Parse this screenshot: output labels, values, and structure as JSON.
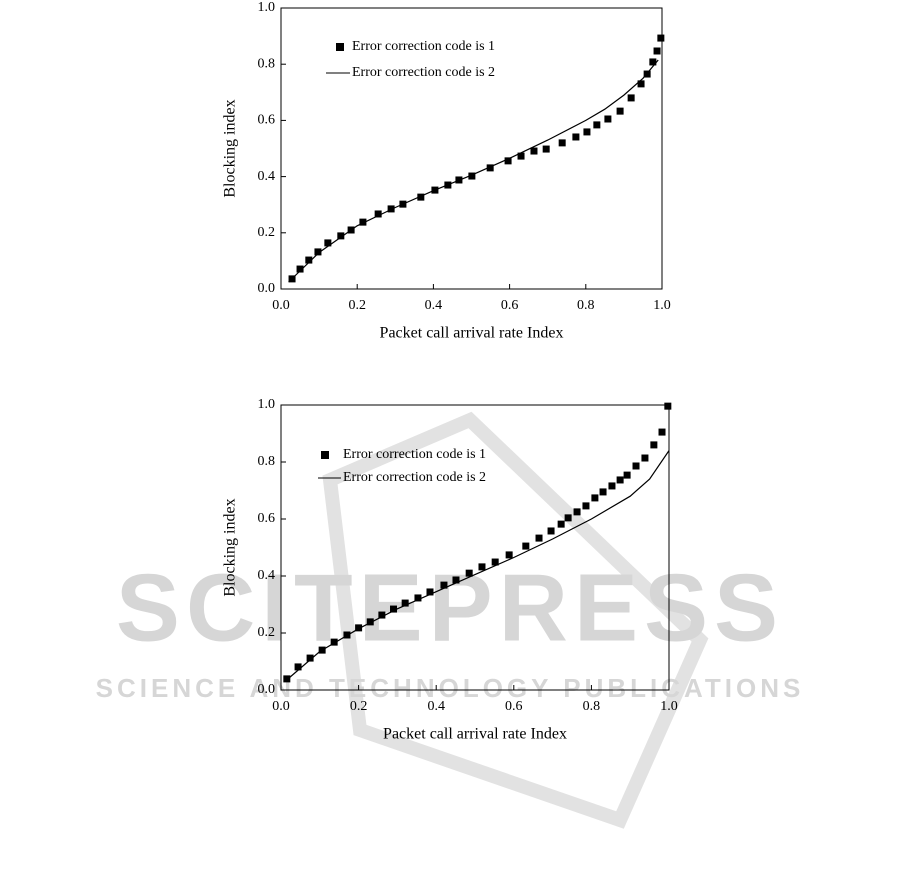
{
  "watermark": {
    "title": "SCITEPRESS",
    "subtitle": "SCIENCE AND TECHNOLOGY PUBLICATIONS"
  },
  "chart_data": [
    {
      "type": "scatter",
      "xlabel": "Packet call arrival rate Index",
      "ylabel": "Blocking index",
      "xlim": [
        0,
        1
      ],
      "ylim": [
        0,
        1
      ],
      "xticks": [
        {
          "value": 0,
          "label": "0.0"
        },
        0.2,
        0.4,
        0.6,
        0.8,
        {
          "value": 1,
          "label": "1.0"
        }
      ],
      "yticks": [
        {
          "value": 0,
          "label": "0.0"
        },
        0.2,
        0.4,
        0.6,
        0.8,
        {
          "value": 1,
          "label": "1.0"
        }
      ],
      "series": [
        {
          "name": "Error correction code is 1",
          "color": "#000000",
          "mode": "markers",
          "x": [
            0.029,
            0.05,
            0.073,
            0.097,
            0.123,
            0.157,
            0.184,
            0.215,
            0.255,
            0.289,
            0.32,
            0.367,
            0.404,
            0.438,
            0.467,
            0.501,
            0.549,
            0.596,
            0.63,
            0.664,
            0.696,
            0.738,
            0.774,
            0.803,
            0.829,
            0.858,
            0.89,
            0.919,
            0.945,
            0.961,
            0.976,
            0.987,
            0.997
          ],
          "values": [
            0.036,
            0.071,
            0.103,
            0.132,
            0.164,
            0.189,
            0.21,
            0.238,
            0.267,
            0.285,
            0.302,
            0.327,
            0.352,
            0.37,
            0.388,
            0.402,
            0.431,
            0.456,
            0.473,
            0.491,
            0.498,
            0.52,
            0.541,
            0.559,
            0.584,
            0.605,
            0.633,
            0.68,
            0.73,
            0.765,
            0.808,
            0.847,
            0.893
          ]
        },
        {
          "name": "Error correction code is 2",
          "color": "#000000",
          "mode": "lines",
          "x": [
            0.02,
            0.1,
            0.2,
            0.3,
            0.4,
            0.5,
            0.6,
            0.7,
            0.8,
            0.85,
            0.9,
            0.95,
            0.99
          ],
          "values": [
            0.025,
            0.13,
            0.225,
            0.29,
            0.35,
            0.405,
            0.465,
            0.53,
            0.6,
            0.64,
            0.69,
            0.75,
            0.815
          ]
        }
      ]
    },
    {
      "type": "scatter",
      "xlabel": "Packet call arrival rate Index",
      "ylabel": "Blocking index",
      "xlim": [
        0,
        1
      ],
      "ylim": [
        0,
        1
      ],
      "xticks": [
        {
          "value": 0,
          "label": "0.0"
        },
        0.2,
        0.4,
        0.6,
        0.8,
        {
          "value": 1,
          "label": "1.0"
        }
      ],
      "yticks": [
        {
          "value": 0,
          "label": "0.0"
        },
        0.2,
        0.4,
        0.6,
        0.8,
        {
          "value": 1,
          "label": "1.0"
        }
      ],
      "series": [
        {
          "name": "Error correction code is 1",
          "color": "#000000",
          "mode": "markers",
          "x": [
            0.015,
            0.044,
            0.075,
            0.106,
            0.137,
            0.17,
            0.2,
            0.23,
            0.26,
            0.29,
            0.32,
            0.353,
            0.384,
            0.42,
            0.451,
            0.485,
            0.518,
            0.552,
            0.588,
            0.631,
            0.665,
            0.696,
            0.722,
            0.74,
            0.763,
            0.786,
            0.809,
            0.83,
            0.853,
            0.874,
            0.892,
            0.915,
            0.938,
            0.961,
            0.982,
            0.997
          ],
          "values": [
            0.039,
            0.081,
            0.112,
            0.14,
            0.168,
            0.193,
            0.218,
            0.239,
            0.263,
            0.284,
            0.305,
            0.323,
            0.344,
            0.368,
            0.386,
            0.41,
            0.432,
            0.449,
            0.474,
            0.505,
            0.533,
            0.558,
            0.582,
            0.604,
            0.625,
            0.646,
            0.674,
            0.695,
            0.716,
            0.737,
            0.754,
            0.786,
            0.814,
            0.86,
            0.905,
            0.996
          ]
        },
        {
          "name": "Error correction code is 2",
          "color": "#000000",
          "mode": "lines",
          "x": [
            0.01,
            0.1,
            0.2,
            0.3,
            0.4,
            0.5,
            0.6,
            0.7,
            0.8,
            0.9,
            0.95,
            1.0
          ],
          "values": [
            0.03,
            0.135,
            0.215,
            0.285,
            0.345,
            0.405,
            0.465,
            0.53,
            0.6,
            0.68,
            0.74,
            0.84
          ]
        }
      ]
    }
  ]
}
